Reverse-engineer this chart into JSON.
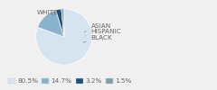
{
  "labels": [
    "WHITE",
    "HISPANIC",
    "BLACK",
    "ASIAN"
  ],
  "values": [
    80.5,
    14.7,
    3.2,
    1.5
  ],
  "colors": [
    "#d6e4f0",
    "#8ab4cc",
    "#1f4e79",
    "#7f9faf"
  ],
  "legend_colors": [
    "#d6e4f0",
    "#8ab4cc",
    "#1f4e79",
    "#7f9faf"
  ],
  "legend_labels": [
    "80.5%",
    "14.7%",
    "3.2%",
    "1.5%"
  ],
  "label_fontsize": 5.2,
  "legend_fontsize": 5.2,
  "bg_color": "#f0f0f0"
}
